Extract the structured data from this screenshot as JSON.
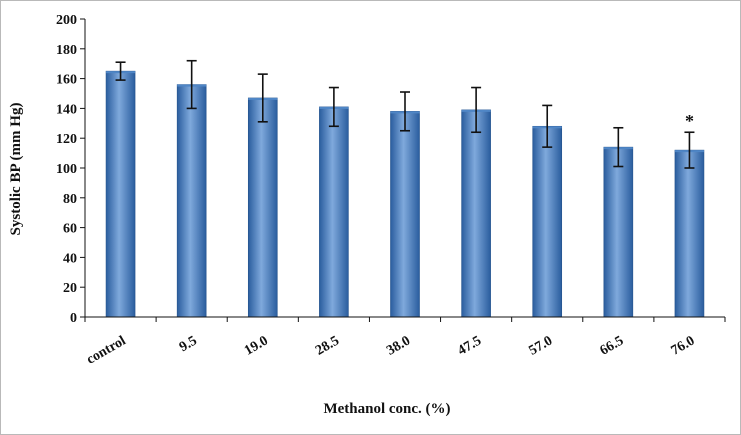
{
  "chart_data": {
    "type": "bar",
    "title": "",
    "xlabel": "Methanol conc. (%)",
    "ylabel": "Systolic BP (mm Hg)",
    "categories": [
      "control",
      "9.5",
      "19.0",
      "28.5",
      "38.0",
      "47.5",
      "57.0",
      "66.5",
      "76.0"
    ],
    "values": [
      165,
      156,
      147,
      141,
      138,
      139,
      128,
      114,
      112
    ],
    "error": [
      6,
      16,
      16,
      13,
      13,
      15,
      14,
      13,
      12
    ],
    "annotations": [
      "",
      "",
      "",
      "",
      "",
      "",
      "",
      "",
      "*"
    ],
    "ylim": [
      0,
      200
    ],
    "yticks": [
      0,
      20,
      40,
      60,
      80,
      100,
      120,
      140,
      160,
      180,
      200
    ],
    "grid": false,
    "legend": "none",
    "colors": {
      "bar_dark": "#2a5d9e",
      "bar_mid": "#4f86c6",
      "bar_light": "#7fa9dc",
      "axis": "#111111"
    }
  }
}
